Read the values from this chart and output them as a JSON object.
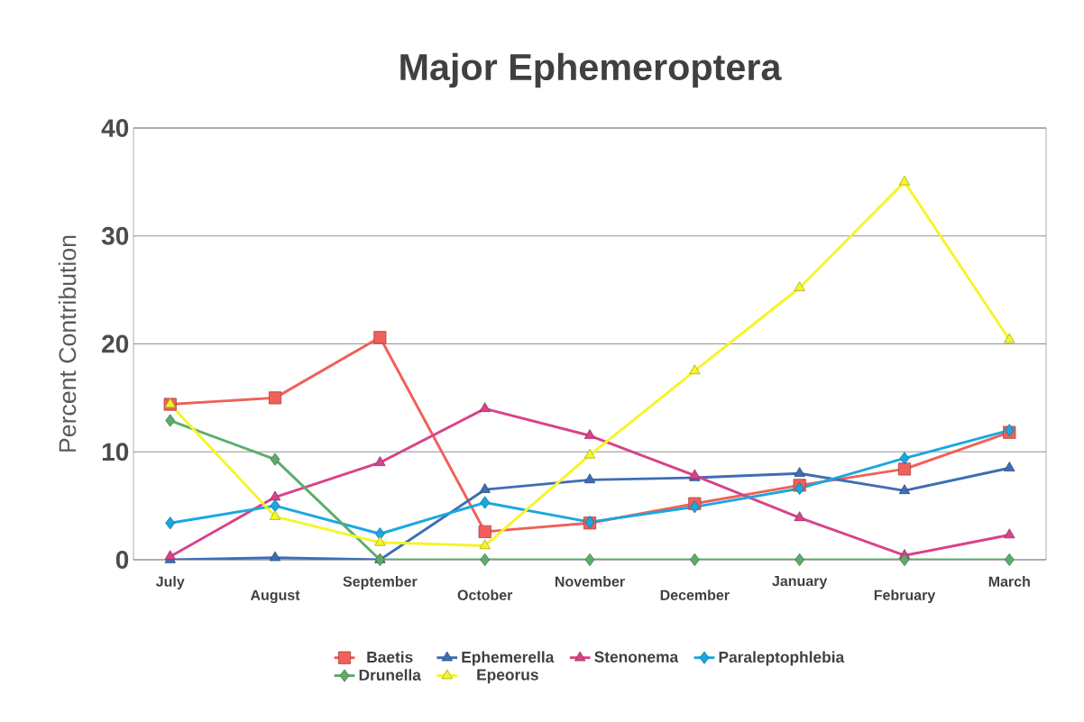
{
  "chart_data": {
    "type": "line",
    "title": "Major Ephemeroptera",
    "ylabel": "Percent Contribution",
    "categories": [
      "July",
      "August",
      "September",
      "October",
      "November",
      "December",
      "January",
      "February",
      "March"
    ],
    "ylim": [
      0,
      40
    ],
    "yticks": [
      0,
      10,
      20,
      30,
      40
    ],
    "grid": "y",
    "legend": "bottom",
    "series": [
      {
        "name": "Baetis",
        "color": "#f0605a",
        "marker": "square",
        "values": [
          14.4,
          15.0,
          20.6,
          2.6,
          3.4,
          5.2,
          6.9,
          8.4,
          11.8
        ]
      },
      {
        "name": "Ephemerella",
        "color": "#3e6db5",
        "marker": "triangle",
        "values": [
          0,
          0.2,
          0,
          6.5,
          7.4,
          7.6,
          8.0,
          6.4,
          8.5
        ]
      },
      {
        "name": "Stenonema",
        "color": "#d9428a",
        "marker": "triangle",
        "values": [
          0.3,
          5.8,
          9.0,
          14.0,
          11.5,
          7.8,
          3.9,
          0.4,
          2.3
        ]
      },
      {
        "name": "Paraleptophlebia",
        "color": "#1aa7e0",
        "marker": "diamond",
        "values": [
          3.4,
          5.0,
          2.4,
          5.3,
          3.5,
          4.9,
          6.6,
          9.4,
          12.0
        ]
      },
      {
        "name": "Drunella",
        "color": "#5cad6a",
        "marker": "diamond",
        "values": [
          12.9,
          9.3,
          0,
          0,
          0,
          0,
          0,
          0,
          0
        ]
      },
      {
        "name": "Epeorus",
        "color": "#f5f528",
        "marker": "triangle",
        "values": [
          14.4,
          4.0,
          1.6,
          1.3,
          9.7,
          17.5,
          25.2,
          35.0,
          20.4
        ]
      }
    ]
  }
}
